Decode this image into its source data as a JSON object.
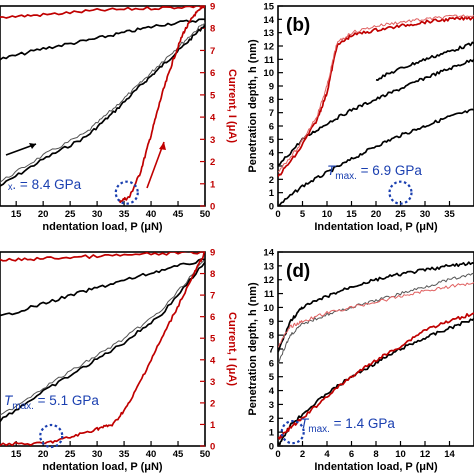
{
  "chart_data": [
    {
      "type": "line",
      "panel_label": "",
      "xlabel": "Indentation load, P (μN)",
      "xlabel_visible": "ndentation load, P (μN)",
      "ylabel": "",
      "y2label": "Current, I (μA)",
      "xlim": [
        12,
        50
      ],
      "ylim": [
        0,
        15
      ],
      "y2lim": [
        0,
        9
      ],
      "x_ticks": [
        15,
        20,
        25,
        30,
        35,
        40,
        45,
        50
      ],
      "y2_ticks": [
        0,
        1,
        2,
        3,
        4,
        5,
        6,
        7,
        8,
        9
      ],
      "annotation": "ₓ. = 8.4 GPa",
      "marker": {
        "x": 35.5,
        "y": 0.6
      },
      "series": [
        {
          "role": "depth-loading",
          "color": "#000000",
          "x": [
            12,
            20,
            28,
            33,
            38,
            42,
            46,
            50
          ],
          "y": [
            1.5,
            3.5,
            5.2,
            7.0,
            9.0,
            10.5,
            12.0,
            13.6
          ]
        },
        {
          "role": "depth-loading",
          "color": "#555555",
          "x": [
            12,
            20,
            28,
            33,
            38,
            42,
            46,
            50
          ],
          "y": [
            1.8,
            3.8,
            5.5,
            7.3,
            9.2,
            10.8,
            12.3,
            13.8
          ]
        },
        {
          "role": "depth-unloading",
          "color": "#000000",
          "x": [
            12,
            20,
            28,
            35,
            42,
            50
          ],
          "y": [
            11.0,
            11.8,
            12.4,
            13.0,
            13.6,
            14.0
          ]
        },
        {
          "role": "current",
          "color": "#c00000",
          "x": [
            34,
            36,
            38,
            40,
            42,
            44,
            46,
            48,
            50
          ],
          "y": [
            0.2,
            0.4,
            1.5,
            3.2,
            5.0,
            6.5,
            7.8,
            8.6,
            9.0
          ]
        },
        {
          "role": "current-unloading",
          "color": "#c00000",
          "x": [
            12,
            20,
            30,
            40,
            50
          ],
          "y": [
            8.5,
            8.6,
            8.8,
            8.9,
            9.0
          ]
        }
      ]
    },
    {
      "type": "line",
      "panel_label": "(b)",
      "xlabel": "Indentation load, P (μN)",
      "ylabel": "Penetration depth, h (nm)",
      "xlim": [
        0,
        40
      ],
      "ylim": [
        0,
        15
      ],
      "x_ticks": [
        0,
        5,
        10,
        15,
        20,
        25,
        30,
        35
      ],
      "y_ticks": [
        0,
        1,
        2,
        3,
        4,
        5,
        6,
        7,
        8,
        9,
        10,
        11,
        12,
        13,
        14,
        15
      ],
      "annotation": "T",
      "annotation_sub": "max.",
      "annotation_value": " = 6.9 GPa",
      "marker": {
        "x": 25,
        "y": 1.0
      },
      "series": [
        {
          "role": "depth-loading",
          "color": "#000000",
          "x": [
            0,
            5,
            10,
            15,
            20,
            25,
            30,
            35,
            40
          ],
          "y": [
            0,
            1.5,
            2.5,
            3.5,
            4.5,
            5.3,
            6.0,
            6.7,
            7.2
          ]
        },
        {
          "role": "depth-loading",
          "color": "#000000",
          "x": [
            0,
            5,
            10,
            15,
            20,
            25,
            30,
            35,
            40
          ],
          "y": [
            3.0,
            5.0,
            6.2,
            7.2,
            8.0,
            8.8,
            9.6,
            10.3,
            11.0
          ]
        },
        {
          "role": "depth-unloading",
          "color": "#000000",
          "x": [
            20,
            25,
            30,
            35,
            40
          ],
          "y": [
            9.5,
            10.3,
            11.0,
            11.6,
            12.2
          ]
        },
        {
          "role": "current",
          "color": "#c00000",
          "x": [
            0,
            4,
            8,
            10,
            12,
            15,
            20,
            25,
            30,
            35,
            40
          ],
          "y": [
            2.2,
            4.0,
            6.5,
            8.5,
            12.0,
            12.8,
            13.2,
            13.5,
            13.8,
            14.0,
            14.1
          ]
        },
        {
          "role": "current",
          "color": "#e06060",
          "x": [
            0,
            4,
            8,
            10,
            12,
            15,
            20,
            25,
            30,
            35,
            40
          ],
          "y": [
            2.6,
            4.3,
            6.8,
            9.0,
            12.2,
            13.0,
            13.5,
            13.8,
            14.0,
            14.2,
            14.3
          ]
        }
      ]
    },
    {
      "type": "line",
      "panel_label": "",
      "xlabel": "Indentation load, P (μN)",
      "xlabel_visible": "ndentation load, P (μN)",
      "ylabel": "",
      "y2label": "Current, I (μA)",
      "xlim": [
        12,
        50
      ],
      "ylim": [
        0,
        15
      ],
      "y2lim": [
        0,
        9
      ],
      "x_ticks": [
        15,
        20,
        25,
        30,
        35,
        40,
        45,
        50
      ],
      "y2_ticks": [
        0,
        1,
        2,
        3,
        4,
        5,
        6,
        7,
        8,
        9
      ],
      "annotation": "T",
      "annotation_sub": "max.",
      "annotation_value": " = 5.1 GPa",
      "marker": {
        "x": 21.5,
        "y": 0.4
      },
      "series": [
        {
          "role": "depth-loading",
          "color": "#000000",
          "x": [
            12,
            20,
            28,
            35,
            42,
            50
          ],
          "y": [
            2.0,
            4.2,
            6.2,
            8.0,
            10.2,
            14.2
          ]
        },
        {
          "role": "depth-loading",
          "color": "#555555",
          "x": [
            12,
            20,
            28,
            35,
            42,
            50
          ],
          "y": [
            2.3,
            4.5,
            6.5,
            8.3,
            10.5,
            14.4
          ]
        },
        {
          "role": "depth-unloading",
          "color": "#000000",
          "x": [
            12,
            20,
            28,
            35,
            42,
            50
          ],
          "y": [
            10.0,
            11.0,
            12.0,
            12.8,
            13.6,
            14.4
          ]
        },
        {
          "role": "current",
          "color": "#c00000",
          "x": [
            12,
            20,
            25,
            30,
            33,
            36,
            40,
            44,
            48,
            50
          ],
          "y": [
            0.1,
            0.1,
            0.4,
            0.8,
            1.0,
            2.0,
            4.0,
            6.0,
            8.0,
            9.0
          ]
        },
        {
          "role": "current-unloading",
          "color": "#c00000",
          "x": [
            12,
            20,
            30,
            40,
            50
          ],
          "y": [
            8.6,
            8.7,
            8.8,
            8.9,
            9.0
          ]
        }
      ]
    },
    {
      "type": "line",
      "panel_label": "(d)",
      "xlabel": "Indentation load, P (μN)",
      "ylabel": "Penetration depth, h (nm)",
      "xlim": [
        0,
        16
      ],
      "ylim": [
        0,
        14
      ],
      "x_ticks": [
        0,
        2,
        4,
        6,
        8,
        10,
        12,
        14
      ],
      "y_ticks": [
        0,
        1,
        2,
        3,
        4,
        5,
        6,
        7,
        8,
        9,
        10,
        11,
        12,
        13,
        14
      ],
      "annotation": "T",
      "annotation_sub": "max.",
      "annotation_value": " = 1.4 GPa",
      "marker": {
        "x": 1.2,
        "y": 1.0
      },
      "series": [
        {
          "role": "depth-loading",
          "color": "#000000",
          "x": [
            0,
            1,
            2,
            4,
            6,
            8,
            10,
            12,
            14,
            16
          ],
          "y": [
            0,
            1.5,
            2.3,
            3.8,
            5.0,
            6.0,
            7.0,
            7.8,
            8.5,
            9.2
          ]
        },
        {
          "role": "depth-loading",
          "color": "#555555",
          "x": [
            0,
            1,
            2,
            4,
            6,
            8,
            10,
            12,
            14,
            16
          ],
          "y": [
            6.0,
            8.0,
            8.8,
            9.5,
            10.0,
            10.5,
            11.0,
            11.5,
            12.0,
            12.4
          ]
        },
        {
          "role": "depth-unloading",
          "color": "#000000",
          "x": [
            0,
            1,
            2,
            4,
            6,
            8,
            10,
            12,
            14,
            16
          ],
          "y": [
            6.8,
            9.0,
            10.0,
            10.8,
            11.5,
            12.0,
            12.4,
            12.7,
            13.0,
            13.2
          ]
        },
        {
          "role": "current",
          "color": "#c00000",
          "x": [
            0,
            1,
            2,
            4,
            6,
            8,
            10,
            12,
            14,
            16
          ],
          "y": [
            0.5,
            1.3,
            2.0,
            3.6,
            5.0,
            6.2,
            7.2,
            8.4,
            9.0,
            9.6
          ]
        },
        {
          "role": "current",
          "color": "#e06060",
          "x": [
            0,
            1,
            2,
            4,
            6,
            8,
            10,
            12,
            14,
            16
          ],
          "y": [
            7.2,
            8.6,
            9.0,
            9.6,
            10.0,
            10.4,
            10.8,
            11.2,
            11.5,
            11.8
          ]
        }
      ]
    }
  ]
}
